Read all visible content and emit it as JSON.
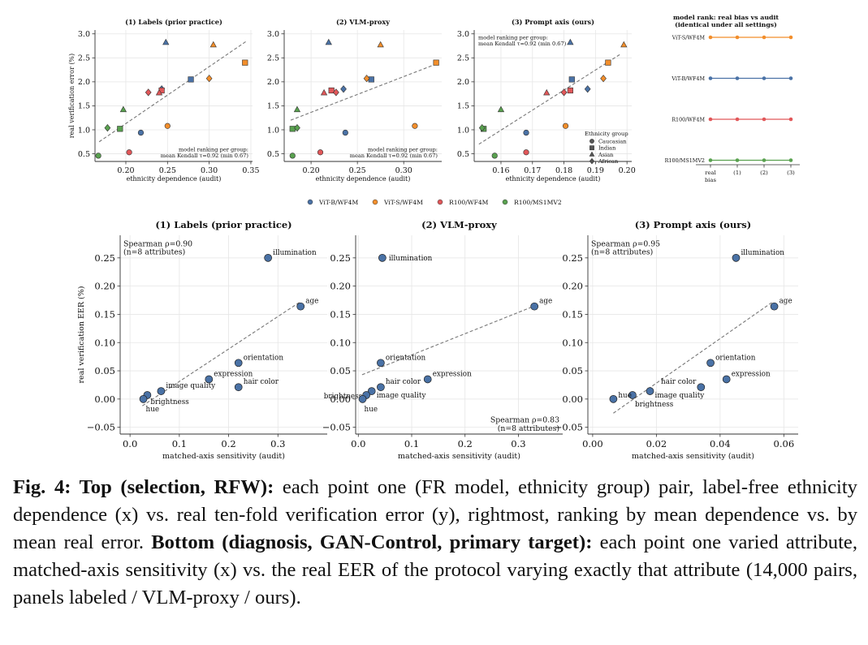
{
  "figure": {
    "colors": {
      "vitb": "#4a72a6",
      "vits": "#f28e2b",
      "r100wf": "#e15759",
      "r100ms": "#59a14f"
    },
    "legend": [
      {
        "label": "ViT-B/WF4M",
        "color": "#4a72a6"
      },
      {
        "label": "ViT-S/WF4M",
        "color": "#f28e2b"
      },
      {
        "label": "R100/WF4M",
        "color": "#e15759"
      },
      {
        "label": "R100/MS1MV2",
        "color": "#59a14f"
      }
    ],
    "shape_legend": {
      "title": "Ethnicity group",
      "items": [
        "Caucasian",
        "Indian",
        "Asian",
        "African"
      ]
    }
  },
  "chart_data": [
    {
      "type": "scatter",
      "title": "(1) Labels (prior practice)",
      "xlabel": "ethnicity dependence (audit)",
      "ylabel": "real verification error (%)",
      "xlim": [
        0.163,
        0.352
      ],
      "ylim": [
        0.34,
        3.08
      ],
      "xticks": [
        "0.20",
        "0.25",
        "0.30",
        "0.35"
      ],
      "yticks": [
        "0.5",
        "1.0",
        "1.5",
        "2.0",
        "2.5",
        "3.0"
      ],
      "annotation": [
        "model ranking per group:",
        "mean Kendall τ=0.92 (min 0.67)"
      ],
      "annotation_pos": "bottom-right",
      "fit": [
        [
          0.168,
          0.75
        ],
        [
          0.345,
          2.85
        ]
      ],
      "points": [
        {
          "model": "ViT-B/WF4M",
          "group": "Caucasian",
          "x": 0.218,
          "y": 0.94
        },
        {
          "model": "ViT-B/WF4M",
          "group": "Indian",
          "x": 0.278,
          "y": 2.05
        },
        {
          "model": "ViT-B/WF4M",
          "group": "Asian",
          "x": 0.248,
          "y": 2.82
        },
        {
          "model": "ViT-B/WF4M",
          "group": "African",
          "x": 0.243,
          "y": 1.85
        },
        {
          "model": "ViT-S/WF4M",
          "group": "Caucasian",
          "x": 0.25,
          "y": 1.08
        },
        {
          "model": "ViT-S/WF4M",
          "group": "Indian",
          "x": 0.343,
          "y": 2.4
        },
        {
          "model": "ViT-S/WF4M",
          "group": "Asian",
          "x": 0.305,
          "y": 2.77
        },
        {
          "model": "ViT-S/WF4M",
          "group": "African",
          "x": 0.3,
          "y": 2.07
        },
        {
          "model": "R100/WF4M",
          "group": "Caucasian",
          "x": 0.204,
          "y": 0.53
        },
        {
          "model": "R100/WF4M",
          "group": "Indian",
          "x": 0.243,
          "y": 1.82
        },
        {
          "model": "R100/WF4M",
          "group": "Asian",
          "x": 0.24,
          "y": 1.77
        },
        {
          "model": "R100/WF4M",
          "group": "African",
          "x": 0.227,
          "y": 1.78
        },
        {
          "model": "R100/MS1MV2",
          "group": "Caucasian",
          "x": 0.167,
          "y": 0.46
        },
        {
          "model": "R100/MS1MV2",
          "group": "Indian",
          "x": 0.193,
          "y": 1.02
        },
        {
          "model": "R100/MS1MV2",
          "group": "Asian",
          "x": 0.197,
          "y": 1.42
        },
        {
          "model": "R100/MS1MV2",
          "group": "African",
          "x": 0.178,
          "y": 1.04
        }
      ]
    },
    {
      "type": "scatter",
      "title": "(2) VLM-proxy",
      "xlabel": "ethnicity dependence (audit)",
      "ylabel": "",
      "xlim": [
        0.171,
        0.341
      ],
      "ylim": [
        0.34,
        3.08
      ],
      "xticks": [
        "0.20",
        "0.25",
        "0.30"
      ],
      "yticks": [
        "0.5",
        "1.0",
        "1.5",
        "2.0",
        "2.5",
        "3.0"
      ],
      "annotation": [
        "model ranking per group:",
        "mean Kendall τ=0.92 (min 0.67)"
      ],
      "annotation_pos": "bottom-right",
      "fit": [
        [
          0.178,
          1.2
        ],
        [
          0.335,
          2.37
        ]
      ],
      "points": [
        {
          "model": "ViT-B/WF4M",
          "group": "Caucasian",
          "x": 0.237,
          "y": 0.94
        },
        {
          "model": "ViT-B/WF4M",
          "group": "Indian",
          "x": 0.265,
          "y": 2.05
        },
        {
          "model": "ViT-B/WF4M",
          "group": "Asian",
          "x": 0.219,
          "y": 2.82
        },
        {
          "model": "ViT-B/WF4M",
          "group": "African",
          "x": 0.235,
          "y": 1.85
        },
        {
          "model": "ViT-S/WF4M",
          "group": "Caucasian",
          "x": 0.312,
          "y": 1.08
        },
        {
          "model": "ViT-S/WF4M",
          "group": "Indian",
          "x": 0.335,
          "y": 2.4
        },
        {
          "model": "ViT-S/WF4M",
          "group": "Asian",
          "x": 0.275,
          "y": 2.77
        },
        {
          "model": "ViT-S/WF4M",
          "group": "African",
          "x": 0.26,
          "y": 2.07
        },
        {
          "model": "R100/WF4M",
          "group": "Caucasian",
          "x": 0.21,
          "y": 0.53
        },
        {
          "model": "R100/WF4M",
          "group": "Indian",
          "x": 0.222,
          "y": 1.82
        },
        {
          "model": "R100/WF4M",
          "group": "Asian",
          "x": 0.214,
          "y": 1.77
        },
        {
          "model": "R100/WF4M",
          "group": "African",
          "x": 0.227,
          "y": 1.78
        },
        {
          "model": "R100/MS1MV2",
          "group": "Caucasian",
          "x": 0.18,
          "y": 0.46
        },
        {
          "model": "R100/MS1MV2",
          "group": "Indian",
          "x": 0.18,
          "y": 1.02
        },
        {
          "model": "R100/MS1MV2",
          "group": "Asian",
          "x": 0.185,
          "y": 1.42
        },
        {
          "model": "R100/MS1MV2",
          "group": "African",
          "x": 0.185,
          "y": 1.04
        }
      ]
    },
    {
      "type": "scatter",
      "title": "(3) Prompt axis (ours)",
      "xlabel": "ethnicity dependence (audit)",
      "ylabel": "",
      "xlim": [
        0.1515,
        0.2015
      ],
      "ylim": [
        0.34,
        3.08
      ],
      "xticks": [
        "0.16",
        "0.17",
        "0.18",
        "0.19",
        "0.20"
      ],
      "yticks": [
        "0.5",
        "1.0",
        "1.5",
        "2.0",
        "2.5",
        "3.0"
      ],
      "annotation": [
        "model ranking per group:",
        "mean Kendall τ=0.92 (min 0.67)"
      ],
      "annotation_pos": "top-left",
      "fit": [
        [
          0.153,
          0.7
        ],
        [
          0.198,
          2.58
        ]
      ],
      "points": [
        {
          "model": "ViT-B/WF4M",
          "group": "Caucasian",
          "x": 0.168,
          "y": 0.94
        },
        {
          "model": "ViT-B/WF4M",
          "group": "Indian",
          "x": 0.1825,
          "y": 2.05
        },
        {
          "model": "ViT-B/WF4M",
          "group": "Asian",
          "x": 0.182,
          "y": 2.82
        },
        {
          "model": "ViT-B/WF4M",
          "group": "African",
          "x": 0.1875,
          "y": 1.85
        },
        {
          "model": "ViT-S/WF4M",
          "group": "Caucasian",
          "x": 0.1805,
          "y": 1.08
        },
        {
          "model": "ViT-S/WF4M",
          "group": "Indian",
          "x": 0.194,
          "y": 2.4
        },
        {
          "model": "ViT-S/WF4M",
          "group": "Asian",
          "x": 0.199,
          "y": 2.77
        },
        {
          "model": "ViT-S/WF4M",
          "group": "African",
          "x": 0.1925,
          "y": 2.07
        },
        {
          "model": "R100/WF4M",
          "group": "Caucasian",
          "x": 0.168,
          "y": 0.53
        },
        {
          "model": "R100/WF4M",
          "group": "Indian",
          "x": 0.182,
          "y": 1.82
        },
        {
          "model": "R100/WF4M",
          "group": "Asian",
          "x": 0.1745,
          "y": 1.77
        },
        {
          "model": "R100/WF4M",
          "group": "African",
          "x": 0.18,
          "y": 1.78
        },
        {
          "model": "R100/MS1MV2",
          "group": "Caucasian",
          "x": 0.158,
          "y": 0.46
        },
        {
          "model": "R100/MS1MV2",
          "group": "Indian",
          "x": 0.1545,
          "y": 1.02
        },
        {
          "model": "R100/MS1MV2",
          "group": "Asian",
          "x": 0.16,
          "y": 1.42
        },
        {
          "model": "R100/MS1MV2",
          "group": "African",
          "x": 0.154,
          "y": 1.04
        }
      ]
    },
    {
      "type": "line",
      "title": "model rank: real bias vs audit",
      "subtitle": "(identical under all settings)",
      "categories": [
        [
          "real",
          "bias"
        ],
        [
          "(1)"
        ],
        [
          "(2)"
        ],
        [
          "(3)"
        ]
      ],
      "series": [
        {
          "name": "ViT-S/WF4M",
          "rank": 1,
          "values": [
            1,
            1,
            1,
            1
          ]
        },
        {
          "name": "ViT-B/WF4M",
          "rank": 2,
          "values": [
            2,
            2,
            2,
            2
          ]
        },
        {
          "name": "R100/WF4M",
          "rank": 3,
          "values": [
            3,
            3,
            3,
            3
          ]
        },
        {
          "name": "R100/MS1MV2",
          "rank": 4,
          "values": [
            4,
            4,
            4,
            4
          ]
        }
      ]
    },
    {
      "type": "scatter",
      "title": "(1) Labels (prior practice)",
      "xlabel": "matched-axis sensitivity (audit)",
      "ylabel": "real verification EER (%)",
      "xlim": [
        -0.02,
        0.4
      ],
      "ylim": [
        -0.062,
        0.29
      ],
      "xticks": [
        "0.0",
        "0.1",
        "0.2",
        "0.3"
      ],
      "yticks": [
        "−0.05",
        "0.00",
        "0.05",
        "0.10",
        "0.15",
        "0.20",
        "0.25"
      ],
      "annotation": [
        "Spearman ρ=0.90",
        "(n=8 attributes)"
      ],
      "annotation_pos": "top-left",
      "fit": [
        [
          0.025,
          -0.012
        ],
        [
          0.345,
          0.172
        ]
      ],
      "points": [
        {
          "label": "illumination",
          "x": 0.28,
          "y": 0.25,
          "lx": 6,
          "ly": -4,
          "anchor": "start"
        },
        {
          "label": "age",
          "x": 0.346,
          "y": 0.164,
          "lx": 6,
          "ly": -4,
          "anchor": "start"
        },
        {
          "label": "orientation",
          "x": 0.22,
          "y": 0.064,
          "lx": 6,
          "ly": -4,
          "anchor": "start"
        },
        {
          "label": "expression",
          "x": 0.16,
          "y": 0.035,
          "lx": 6,
          "ly": -4,
          "anchor": "start"
        },
        {
          "label": "hair color",
          "x": 0.22,
          "y": 0.021,
          "lx": 6,
          "ly": -4,
          "anchor": "start"
        },
        {
          "label": "image quality",
          "x": 0.063,
          "y": 0.014,
          "lx": 6,
          "ly": -4,
          "anchor": "start"
        },
        {
          "label": "brightness",
          "x": 0.035,
          "y": 0.007,
          "lx": 4,
          "ly": 11,
          "anchor": "start"
        },
        {
          "label": "hue",
          "x": 0.027,
          "y": 0.0,
          "lx": 3,
          "ly": 15,
          "anchor": "start"
        }
      ]
    },
    {
      "type": "scatter",
      "title": "(2) VLM-proxy",
      "xlabel": "matched-axis sensitivity (audit)",
      "ylabel": "",
      "xlim": [
        -0.005,
        0.383
      ],
      "ylim": [
        -0.062,
        0.29
      ],
      "xticks": [
        "0.0",
        "0.1",
        "0.2",
        "0.3"
      ],
      "yticks": [
        "−0.05",
        "0.00",
        "0.05",
        "0.10",
        "0.15",
        "0.20",
        "0.25"
      ],
      "annotation": [
        "Spearman ρ=0.83",
        "(n=8 attributes)"
      ],
      "annotation_pos": "bottom-right",
      "fit": [
        [
          0.007,
          0.043
        ],
        [
          0.328,
          0.164
        ]
      ],
      "points": [
        {
          "label": "illumination",
          "x": 0.045,
          "y": 0.25,
          "lx": 8,
          "ly": 3,
          "anchor": "start"
        },
        {
          "label": "age",
          "x": 0.33,
          "y": 0.164,
          "lx": 6,
          "ly": -4,
          "anchor": "start"
        },
        {
          "label": "orientation",
          "x": 0.042,
          "y": 0.064,
          "lx": 6,
          "ly": -4,
          "anchor": "start"
        },
        {
          "label": "expression",
          "x": 0.13,
          "y": 0.035,
          "lx": 6,
          "ly": -4,
          "anchor": "start"
        },
        {
          "label": "hair color",
          "x": 0.042,
          "y": 0.021,
          "lx": 6,
          "ly": -4,
          "anchor": "start"
        },
        {
          "label": "image quality",
          "x": 0.025,
          "y": 0.014,
          "lx": 6,
          "ly": 8,
          "anchor": "start"
        },
        {
          "label": "brightness",
          "x": 0.015,
          "y": 0.007,
          "lx": -5,
          "ly": 4,
          "anchor": "end"
        },
        {
          "label": "hue",
          "x": 0.008,
          "y": 0.0,
          "lx": 2,
          "ly": 15,
          "anchor": "start"
        }
      ]
    },
    {
      "type": "scatter",
      "title": "(3) Prompt axis (ours)",
      "xlabel": "matched-axis sensitivity (audit)",
      "ylabel": "",
      "xlim": [
        -0.0015,
        0.0645
      ],
      "ylim": [
        -0.062,
        0.29
      ],
      "xticks": [
        "0.00",
        "0.02",
        "0.04",
        "0.06"
      ],
      "yticks": [
        "−0.05",
        "0.00",
        "0.05",
        "0.10",
        "0.15",
        "0.20",
        "0.25"
      ],
      "annotation": [
        "Spearman ρ=0.95",
        "(n=8 attributes)"
      ],
      "annotation_pos": "top-left",
      "fit": [
        [
          0.0065,
          -0.025
        ],
        [
          0.0565,
          0.172
        ]
      ],
      "points": [
        {
          "label": "illumination",
          "x": 0.045,
          "y": 0.25,
          "lx": 6,
          "ly": -4,
          "anchor": "start"
        },
        {
          "label": "age",
          "x": 0.057,
          "y": 0.164,
          "lx": 6,
          "ly": -4,
          "anchor": "start"
        },
        {
          "label": "orientation",
          "x": 0.037,
          "y": 0.064,
          "lx": 6,
          "ly": -4,
          "anchor": "start"
        },
        {
          "label": "expression",
          "x": 0.042,
          "y": 0.035,
          "lx": 6,
          "ly": -4,
          "anchor": "start"
        },
        {
          "label": "hair color",
          "x": 0.034,
          "y": 0.021,
          "lx": -6,
          "ly": -4,
          "anchor": "end"
        },
        {
          "label": "image quality",
          "x": 0.018,
          "y": 0.014,
          "lx": 6,
          "ly": 8,
          "anchor": "start"
        },
        {
          "label": "brightness",
          "x": 0.0125,
          "y": 0.007,
          "lx": 3,
          "ly": 14,
          "anchor": "start"
        },
        {
          "label": "hue",
          "x": 0.0065,
          "y": 0.0,
          "lx": 6,
          "ly": -2,
          "anchor": "start"
        }
      ]
    }
  ],
  "caption": {
    "top_label": "Fig. 4: Top (selection, RFW):",
    "top_text": " each point one (FR model, ethnicity group) pair, label-free ethnicity dependence (x) vs. real ten-fold verification error (y), rightmost, ranking by mean dependence vs. by mean real error. ",
    "bottom_label": "Bottom (diagnosis, GAN-Control, primary target):",
    "bottom_text": " each point one varied attribute, matched-axis sensitivity (x) vs. the real EER of the protocol varying exactly that attribute (14,000 pairs, panels labeled / VLM-proxy / ours)."
  }
}
